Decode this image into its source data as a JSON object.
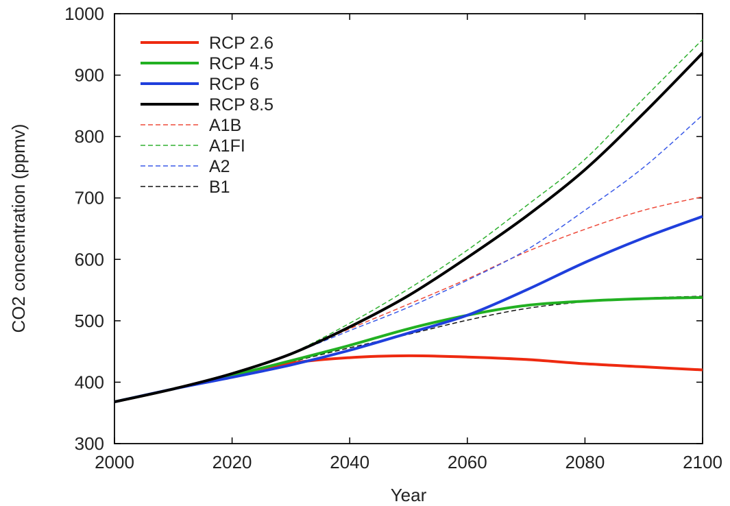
{
  "chart_data": {
    "type": "line",
    "title": "",
    "xlabel": "Year",
    "ylabel": "CO2 concentration (ppmv)",
    "xlim": [
      2000,
      2100
    ],
    "ylim": [
      300,
      1000
    ],
    "xticks": [
      2000,
      2020,
      2040,
      2060,
      2080,
      2100
    ],
    "yticks": [
      300,
      400,
      500,
      600,
      700,
      800,
      900,
      1000
    ],
    "grid": false,
    "legend_position": "top-left",
    "x": [
      2000,
      2010,
      2020,
      2030,
      2040,
      2050,
      2060,
      2070,
      2080,
      2090,
      2100
    ],
    "series": [
      {
        "name": "RCP 2.6",
        "style": "solid",
        "color": "#ee2a10",
        "values": [
          368,
          389,
          412,
          431,
          440,
          443,
          441,
          437,
          430,
          425,
          420
        ]
      },
      {
        "name": "RCP 4.5",
        "style": "solid",
        "color": "#22b022",
        "values": [
          368,
          389,
          411,
          435,
          460,
          487,
          509,
          525,
          532,
          536,
          538
        ]
      },
      {
        "name": "RCP 6",
        "style": "solid",
        "color": "#1f3fdc",
        "values": [
          368,
          389,
          408,
          428,
          452,
          480,
          509,
          550,
          595,
          635,
          670
        ]
      },
      {
        "name": "RCP 8.5",
        "style": "solid",
        "color": "#000000",
        "values": [
          368,
          389,
          414,
          446,
          490,
          541,
          603,
          670,
          746,
          838,
          936
        ]
      },
      {
        "name": "A1B",
        "style": "dashed",
        "color": "#ee4a3a",
        "values": [
          368,
          388,
          414,
          446,
          487,
          527,
          568,
          612,
          649,
          680,
          702
        ]
      },
      {
        "name": "A1FI",
        "style": "dashed",
        "color": "#30b030",
        "values": [
          368,
          388,
          414,
          447,
          496,
          552,
          615,
          687,
          763,
          862,
          958
        ]
      },
      {
        "name": "A2",
        "style": "dashed",
        "color": "#3a5ae8",
        "values": [
          368,
          388,
          414,
          446,
          484,
          522,
          566,
          615,
          680,
          750,
          835
        ]
      },
      {
        "name": "B1",
        "style": "dashed",
        "color": "#111111",
        "values": [
          368,
          388,
          410,
          433,
          456,
          478,
          501,
          520,
          531,
          537,
          540
        ]
      }
    ],
    "legend_labels": [
      "RCP 2.6",
      "RCP 4.5",
      "RCP 6",
      "RCP 8.5",
      "A1B",
      "A1FI",
      "A2",
      "B1"
    ]
  }
}
